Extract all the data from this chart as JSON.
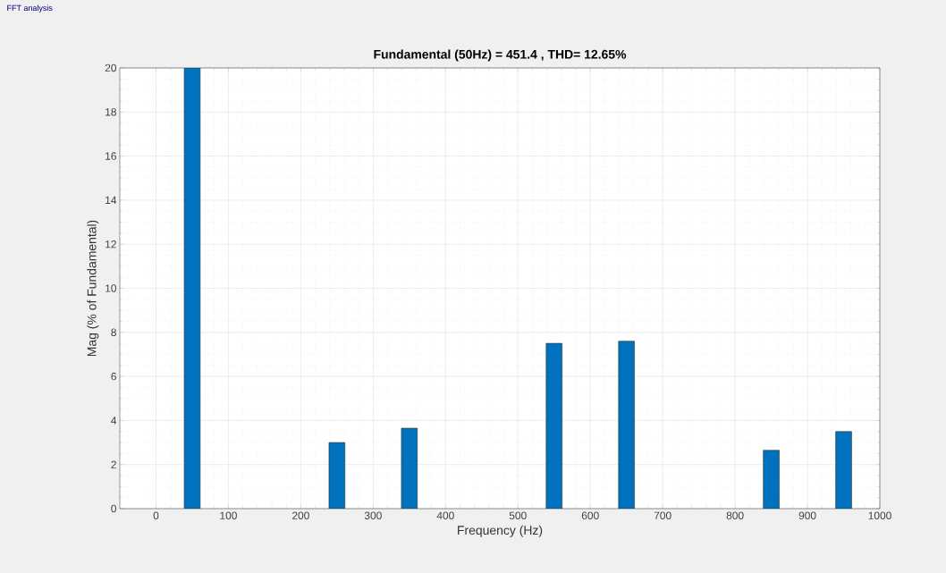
{
  "chart_data": {
    "type": "bar",
    "title": "Fundamental (50Hz) = 451.4 , THD= 12.65%",
    "xlabel": "Frequency (Hz)",
    "ylabel": "Mag (% of Fundamental)",
    "annotations": [
      "FFT analysis"
    ],
    "x": [
      50,
      250,
      350,
      550,
      650,
      850,
      950
    ],
    "values": [
      20,
      3.0,
      3.65,
      7.5,
      7.6,
      2.65,
      3.5
    ],
    "color": "#0072bd",
    "xlim": [
      -50,
      1000
    ],
    "ylim": [
      0,
      20
    ],
    "xticks": [
      0,
      100,
      200,
      300,
      400,
      500,
      600,
      700,
      800,
      900,
      1000
    ],
    "yticks": [
      0,
      2,
      4,
      6,
      8,
      10,
      12,
      14,
      16,
      18,
      20
    ],
    "grid": true
  }
}
